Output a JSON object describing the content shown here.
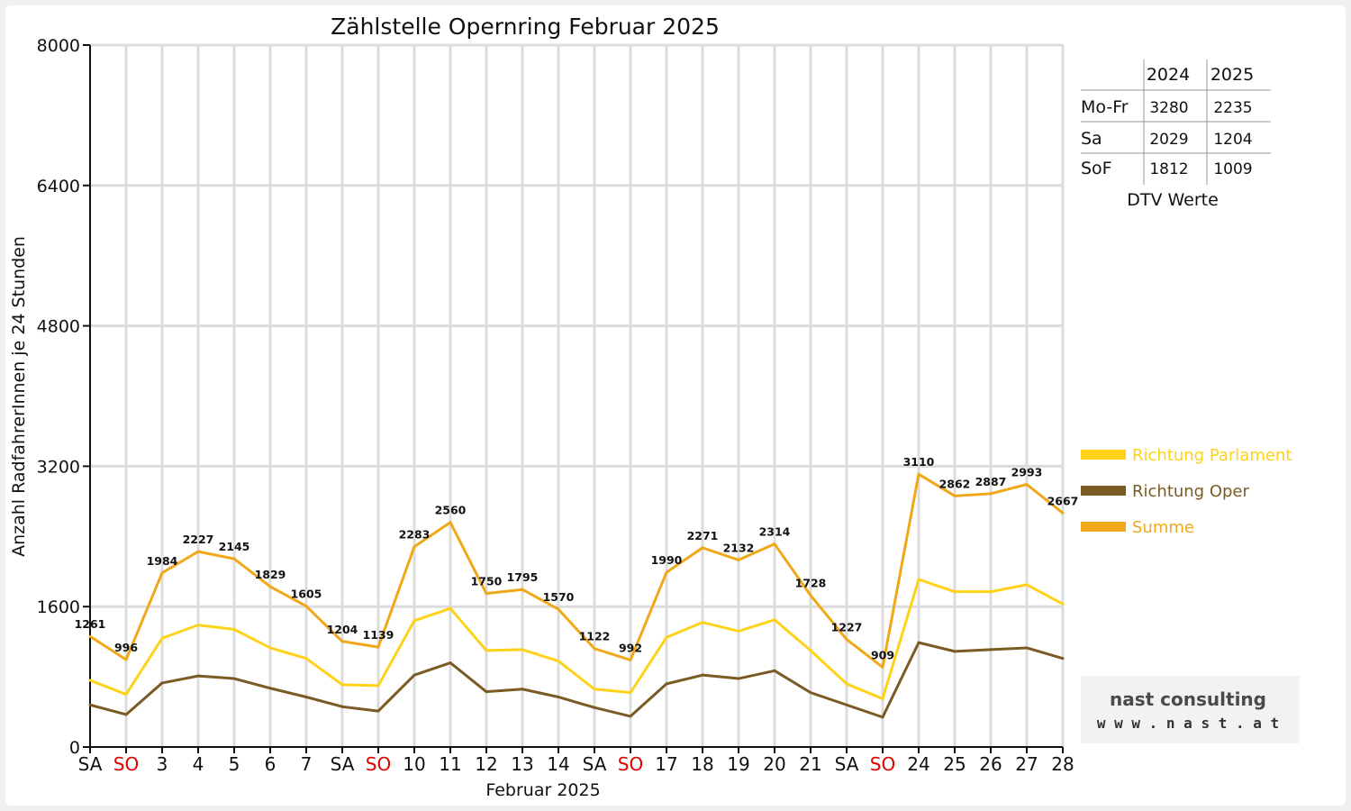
{
  "chart_data": {
    "type": "line",
    "title": "Zählstelle Opernring Februar 2025",
    "xlabel": "Februar 2025",
    "ylabel": "Anzahl RadfahrerInnen je 24 Stunden",
    "ylim": [
      0,
      8000
    ],
    "yticks": [
      "0",
      "1600",
      "3200",
      "4800",
      "6400",
      "8000"
    ],
    "grid": true,
    "legend_position": "right",
    "categories": [
      "SA",
      "SO",
      "3",
      "4",
      "5",
      "6",
      "7",
      "SA",
      "SO",
      "10",
      "11",
      "12",
      "13",
      "14",
      "SA",
      "SO",
      "17",
      "18",
      "19",
      "20",
      "21",
      "SA",
      "SO",
      "24",
      "25",
      "26",
      "27",
      "28"
    ],
    "highlighted_categories": [
      1,
      8,
      15,
      22
    ],
    "series": [
      {
        "name": "Richtung Parlament",
        "color": "#FFD21A",
        "values": [
          760,
          600,
          1240,
          1390,
          1340,
          1130,
          1010,
          710,
          700,
          1440,
          1580,
          1100,
          1110,
          980,
          660,
          620,
          1250,
          1420,
          1320,
          1450,
          1100,
          720,
          550,
          1910,
          1770,
          1770,
          1850,
          1630
        ]
      },
      {
        "name": "Richtung Oper",
        "color": "#7A5B24",
        "values": [
          480,
          370,
          730,
          810,
          780,
          670,
          570,
          460,
          410,
          820,
          960,
          630,
          660,
          570,
          450,
          350,
          720,
          820,
          780,
          870,
          620,
          480,
          340,
          1190,
          1090,
          1110,
          1130,
          1010
        ]
      },
      {
        "name": "Summe",
        "color": "#F0A818",
        "values": [
          1261,
          996,
          1984,
          2227,
          2145,
          1829,
          1605,
          1204,
          1139,
          2283,
          2560,
          1750,
          1795,
          1570,
          1122,
          992,
          1990,
          2271,
          2132,
          2314,
          1728,
          1227,
          909,
          3110,
          2862,
          2887,
          2993,
          2667
        ]
      }
    ],
    "data_labels": [
      "1261",
      "996",
      "1984",
      "2227",
      "2145",
      "1829",
      "1605",
      "1204",
      "1139",
      "2283",
      "2560",
      "1750",
      "1795",
      "1570",
      "1122",
      "992",
      "1990",
      "2271",
      "2132",
      "2314",
      "1728",
      "1227",
      "909",
      "3110",
      "2862",
      "2887",
      "2993",
      "2667"
    ]
  },
  "dtv_table": {
    "caption": "DTV Werte",
    "headers": [
      "",
      "2024",
      "2025"
    ],
    "rows": [
      {
        "label": "Mo-Fr",
        "y2024": "3280",
        "y2025": "2235"
      },
      {
        "label": "Sa",
        "y2024": "2029",
        "y2025": "1204"
      },
      {
        "label": "SoF",
        "y2024": "1812",
        "y2025": "1009"
      }
    ]
  },
  "logo": {
    "name": "nast consulting",
    "url": "w w w . n a s t . a t"
  },
  "colors": {
    "sunday": "#E00000",
    "grid": "#dcdcdc"
  }
}
